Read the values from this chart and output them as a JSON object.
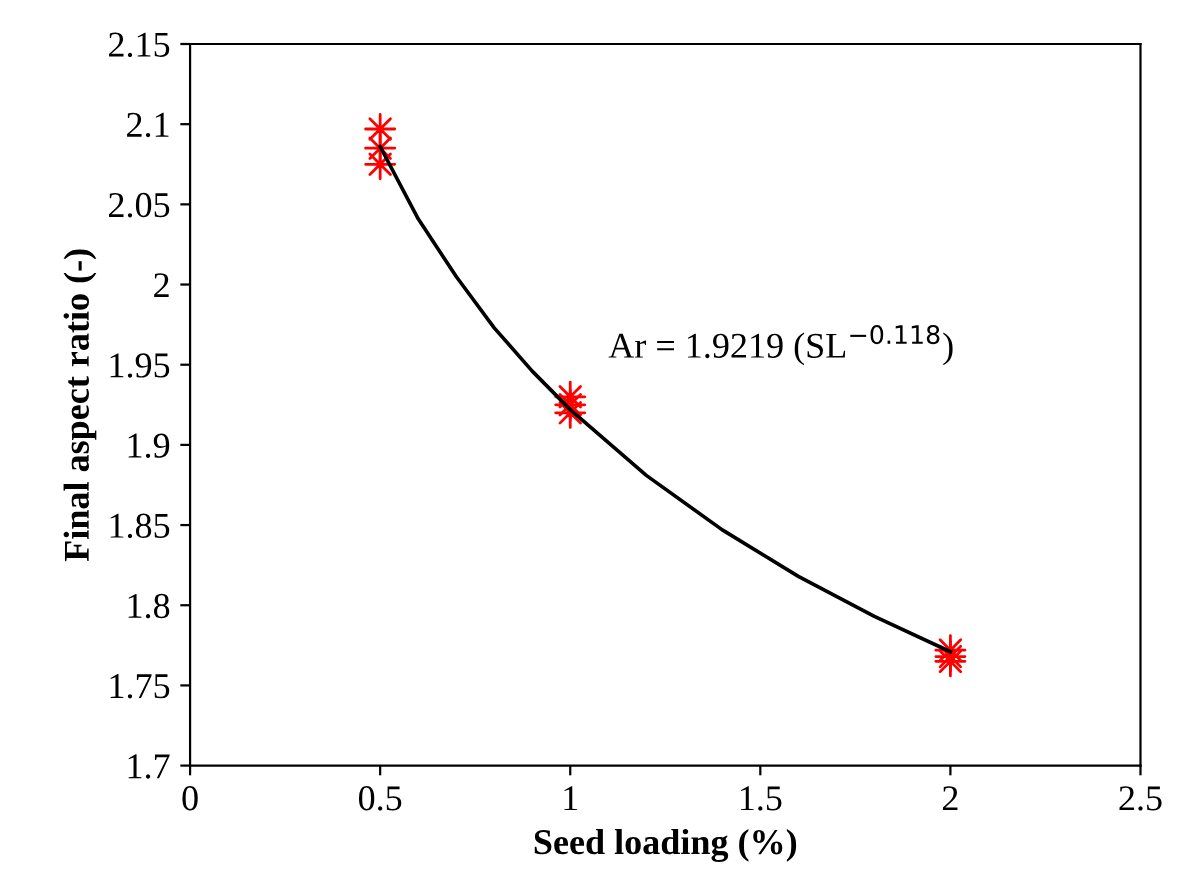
{
  "chart_data": {
    "type": "scatter",
    "xlabel": "Seed loading (%)",
    "ylabel": "Final aspect ratio (-)",
    "series": [
      {
        "color": "#ff0000",
        "marker": "star",
        "x": [
          0.5,
          0.5,
          0.5,
          1,
          1,
          1,
          2,
          2,
          2
        ],
        "values": [
          2.097,
          2.085,
          2.075,
          1.93,
          1.92,
          1.925,
          1.772,
          1.768,
          1.765
        ]
      },
      {
        "type": "line",
        "color": "#000000",
        "marker": "none",
        "line_style": "solid",
        "x": [
          0.5,
          0.6,
          0.7,
          0.8,
          0.9,
          1,
          1.2,
          1.4,
          1.6,
          1.8,
          2
        ],
        "values": [
          2.086,
          2.041,
          2.005,
          1.973,
          1.946,
          1.922,
          1.881,
          1.847,
          1.818,
          1.793,
          1.771
        ]
      }
    ],
    "annotations": [
      "Ar = 1.9219 (SL$^{−0.118}$)"
    ],
    "xlim": [
      0,
      2.5
    ],
    "xticks": [
      0,
      0.5,
      1,
      1.5,
      2,
      2.5
    ],
    "ylim": [
      1.7,
      2.15
    ],
    "yticks": [
      1.7,
      1.75,
      1.8,
      1.85,
      1.9,
      1.95,
      2,
      2.05,
      2.1,
      2.15
    ],
    "grid": false,
    "legend": false
  }
}
